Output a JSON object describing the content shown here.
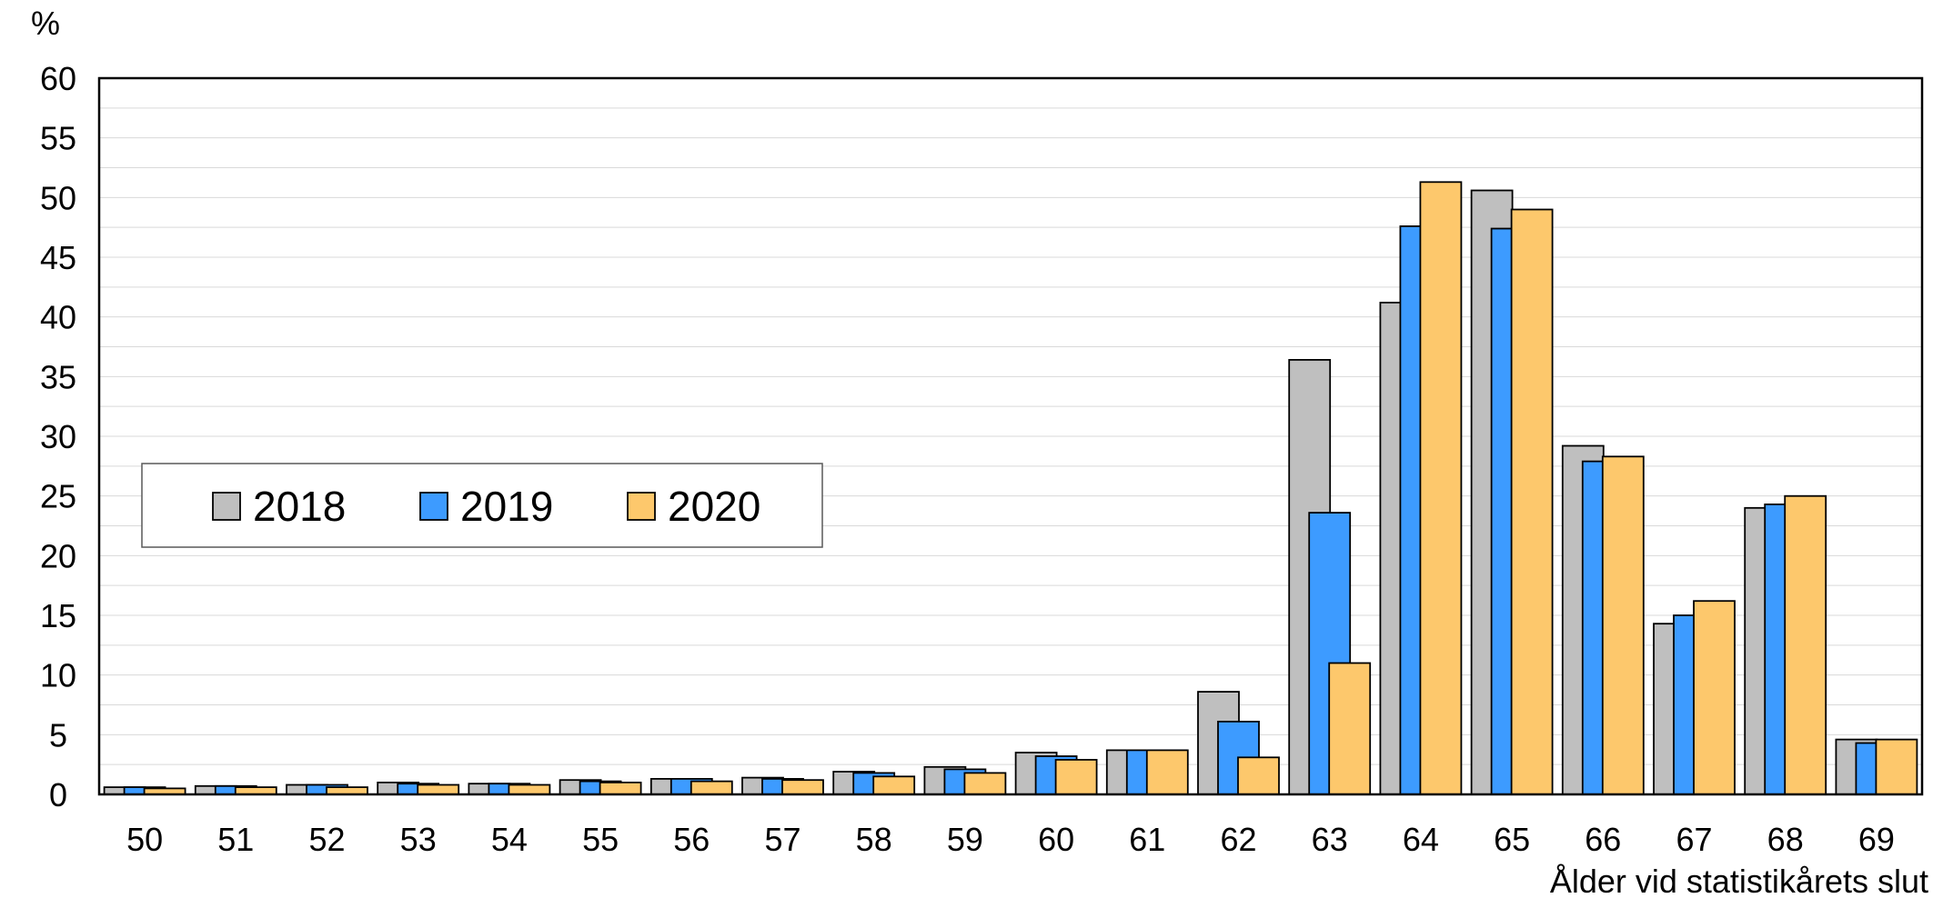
{
  "chart_data": {
    "type": "bar",
    "ylabel": "%",
    "xlabel": "Ålder vid statistikårets slut",
    "ylim": [
      0,
      60
    ],
    "yticks": [
      0,
      5,
      10,
      15,
      20,
      25,
      30,
      35,
      40,
      45,
      50,
      55,
      60
    ],
    "minor_grid_step": 2.5,
    "grid": true,
    "legend_position": "middle-left",
    "categories": [
      "50",
      "51",
      "52",
      "53",
      "54",
      "55",
      "56",
      "57",
      "58",
      "59",
      "60",
      "61",
      "62",
      "63",
      "64",
      "65",
      "66",
      "67",
      "68",
      "69"
    ],
    "series": [
      {
        "name": "2018",
        "color": "#bfbfbf",
        "values": [
          0.6,
          0.7,
          0.8,
          1.0,
          0.9,
          1.2,
          1.3,
          1.4,
          1.9,
          2.3,
          3.5,
          3.7,
          8.6,
          36.4,
          41.2,
          50.6,
          29.2,
          14.3,
          24.0,
          4.6
        ]
      },
      {
        "name": "2019",
        "color": "#3d9bff",
        "values": [
          0.6,
          0.7,
          0.8,
          0.9,
          0.9,
          1.1,
          1.3,
          1.3,
          1.8,
          2.1,
          3.2,
          3.7,
          6.1,
          23.6,
          47.6,
          47.4,
          27.9,
          15.0,
          24.3,
          4.3
        ]
      },
      {
        "name": "2020",
        "color": "#fdc86c",
        "values": [
          0.5,
          0.6,
          0.6,
          0.8,
          0.8,
          1.0,
          1.1,
          1.2,
          1.5,
          1.8,
          2.9,
          3.7,
          3.1,
          11.0,
          51.3,
          49.0,
          28.3,
          16.2,
          25.0,
          4.6
        ]
      }
    ]
  }
}
